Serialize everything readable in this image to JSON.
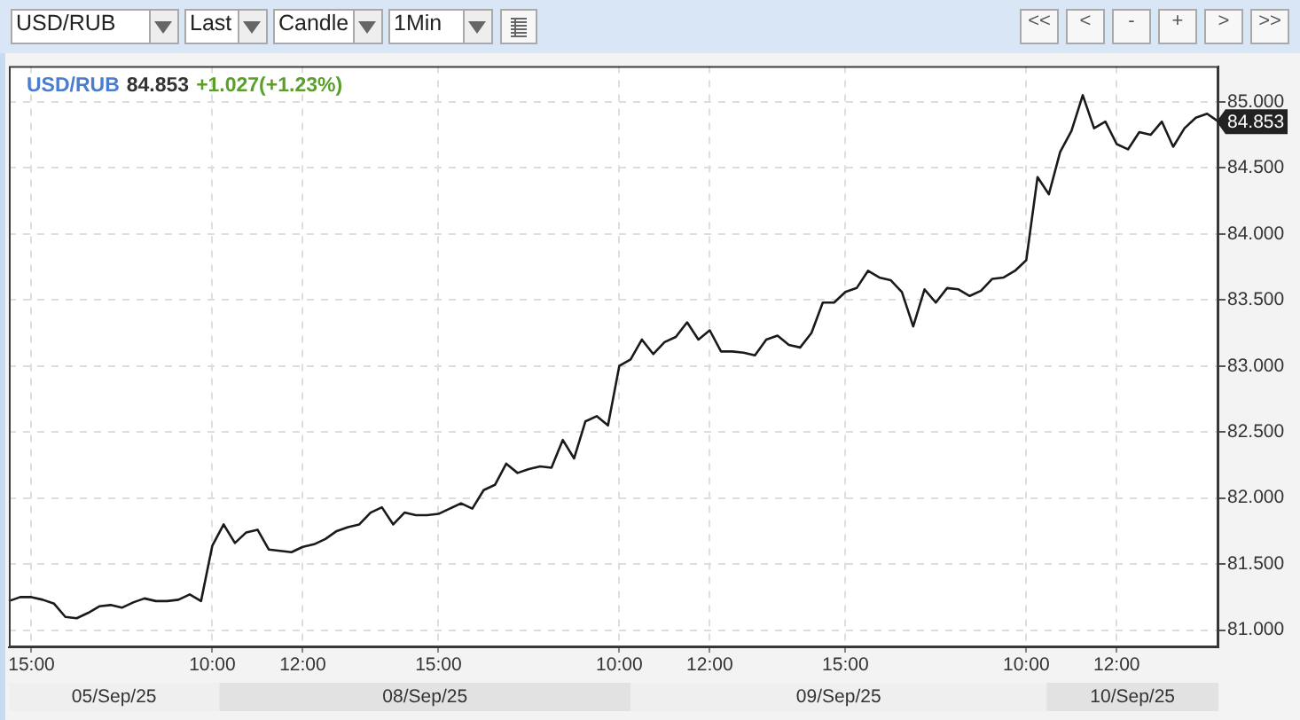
{
  "chart_data": {
    "type": "line",
    "title": "USD/RUB",
    "annotations": [
      "USD/RUB",
      "Last",
      "Candle",
      "1Min",
      "<<",
      "<",
      "-",
      "+",
      ">",
      ">>",
      "84.853",
      "+1.027(+1.23%)",
      "84.853",
      "05/Sep/25",
      "08/Sep/25",
      "09/Sep/25",
      "10/Sep/25"
    ],
    "categories": [
      null,
      null,
      "15:00",
      null,
      null,
      null,
      null,
      null,
      null,
      null,
      null,
      null,
      null,
      null,
      null,
      null,
      null,
      null,
      "10:00",
      null,
      null,
      null,
      null,
      null,
      null,
      null,
      "12:00",
      null,
      null,
      null,
      null,
      null,
      null,
      null,
      null,
      null,
      null,
      null,
      "15:00",
      null,
      null,
      null,
      null,
      null,
      null,
      null,
      null,
      null,
      null,
      null,
      null,
      null,
      null,
      null,
      "10:00",
      null,
      null,
      null,
      null,
      null,
      null,
      null,
      "12:00",
      null,
      null,
      null,
      null,
      null,
      null,
      null,
      null,
      null,
      null,
      null,
      "15:00",
      null,
      null,
      null,
      null,
      null,
      null,
      null,
      null,
      null,
      null,
      null,
      null,
      null,
      null,
      null,
      "10:00",
      null,
      null,
      null,
      null,
      null,
      null,
      null,
      "12:00",
      null,
      null,
      null,
      null,
      null,
      null,
      null,
      null,
      null
    ],
    "values": [
      81.22,
      81.25,
      81.25,
      81.23,
      81.2,
      81.1,
      81.09,
      81.13,
      81.18,
      81.19,
      81.17,
      81.21,
      81.24,
      81.22,
      81.22,
      81.23,
      81.27,
      81.22,
      81.64,
      81.8,
      81.66,
      81.74,
      81.76,
      81.61,
      81.6,
      81.59,
      81.63,
      81.65,
      81.69,
      81.75,
      81.78,
      81.8,
      81.89,
      81.93,
      81.8,
      81.89,
      81.87,
      81.87,
      81.88,
      81.92,
      81.96,
      81.92,
      82.06,
      82.1,
      82.26,
      82.19,
      82.22,
      82.24,
      82.23,
      82.44,
      82.3,
      82.58,
      82.62,
      82.55,
      83.0,
      83.05,
      83.2,
      83.09,
      83.18,
      83.22,
      83.33,
      83.2,
      83.27,
      83.11,
      83.11,
      83.1,
      83.08,
      83.2,
      83.23,
      83.16,
      83.14,
      83.25,
      83.48,
      83.48,
      83.56,
      83.59,
      83.72,
      83.67,
      83.65,
      83.56,
      83.3,
      83.58,
      83.48,
      83.59,
      83.58,
      83.53,
      83.57,
      83.66,
      83.67,
      83.72,
      83.8,
      84.43,
      84.3,
      84.62,
      84.78,
      85.05,
      84.8,
      84.85,
      84.68,
      84.64,
      84.77,
      84.75,
      84.85,
      84.66,
      84.8,
      84.88,
      84.91,
      84.85
    ],
    "color": "#1a1a1a",
    "ylim": [
      80.87,
      85.27
    ],
    "yticks": [
      {
        "value": 81,
        "label": "81.000"
      },
      {
        "value": 81.5,
        "label": "81.500"
      },
      {
        "value": 82,
        "label": "82.000"
      },
      {
        "value": 82.5,
        "label": "82.500"
      },
      {
        "value": 83,
        "label": "83.000"
      },
      {
        "value": 83.5,
        "label": "83.500"
      },
      {
        "value": 84,
        "label": "84.000"
      },
      {
        "value": 84.5,
        "label": "84.500"
      },
      {
        "value": 85,
        "label": "85.000"
      }
    ],
    "grid": true
  }
}
